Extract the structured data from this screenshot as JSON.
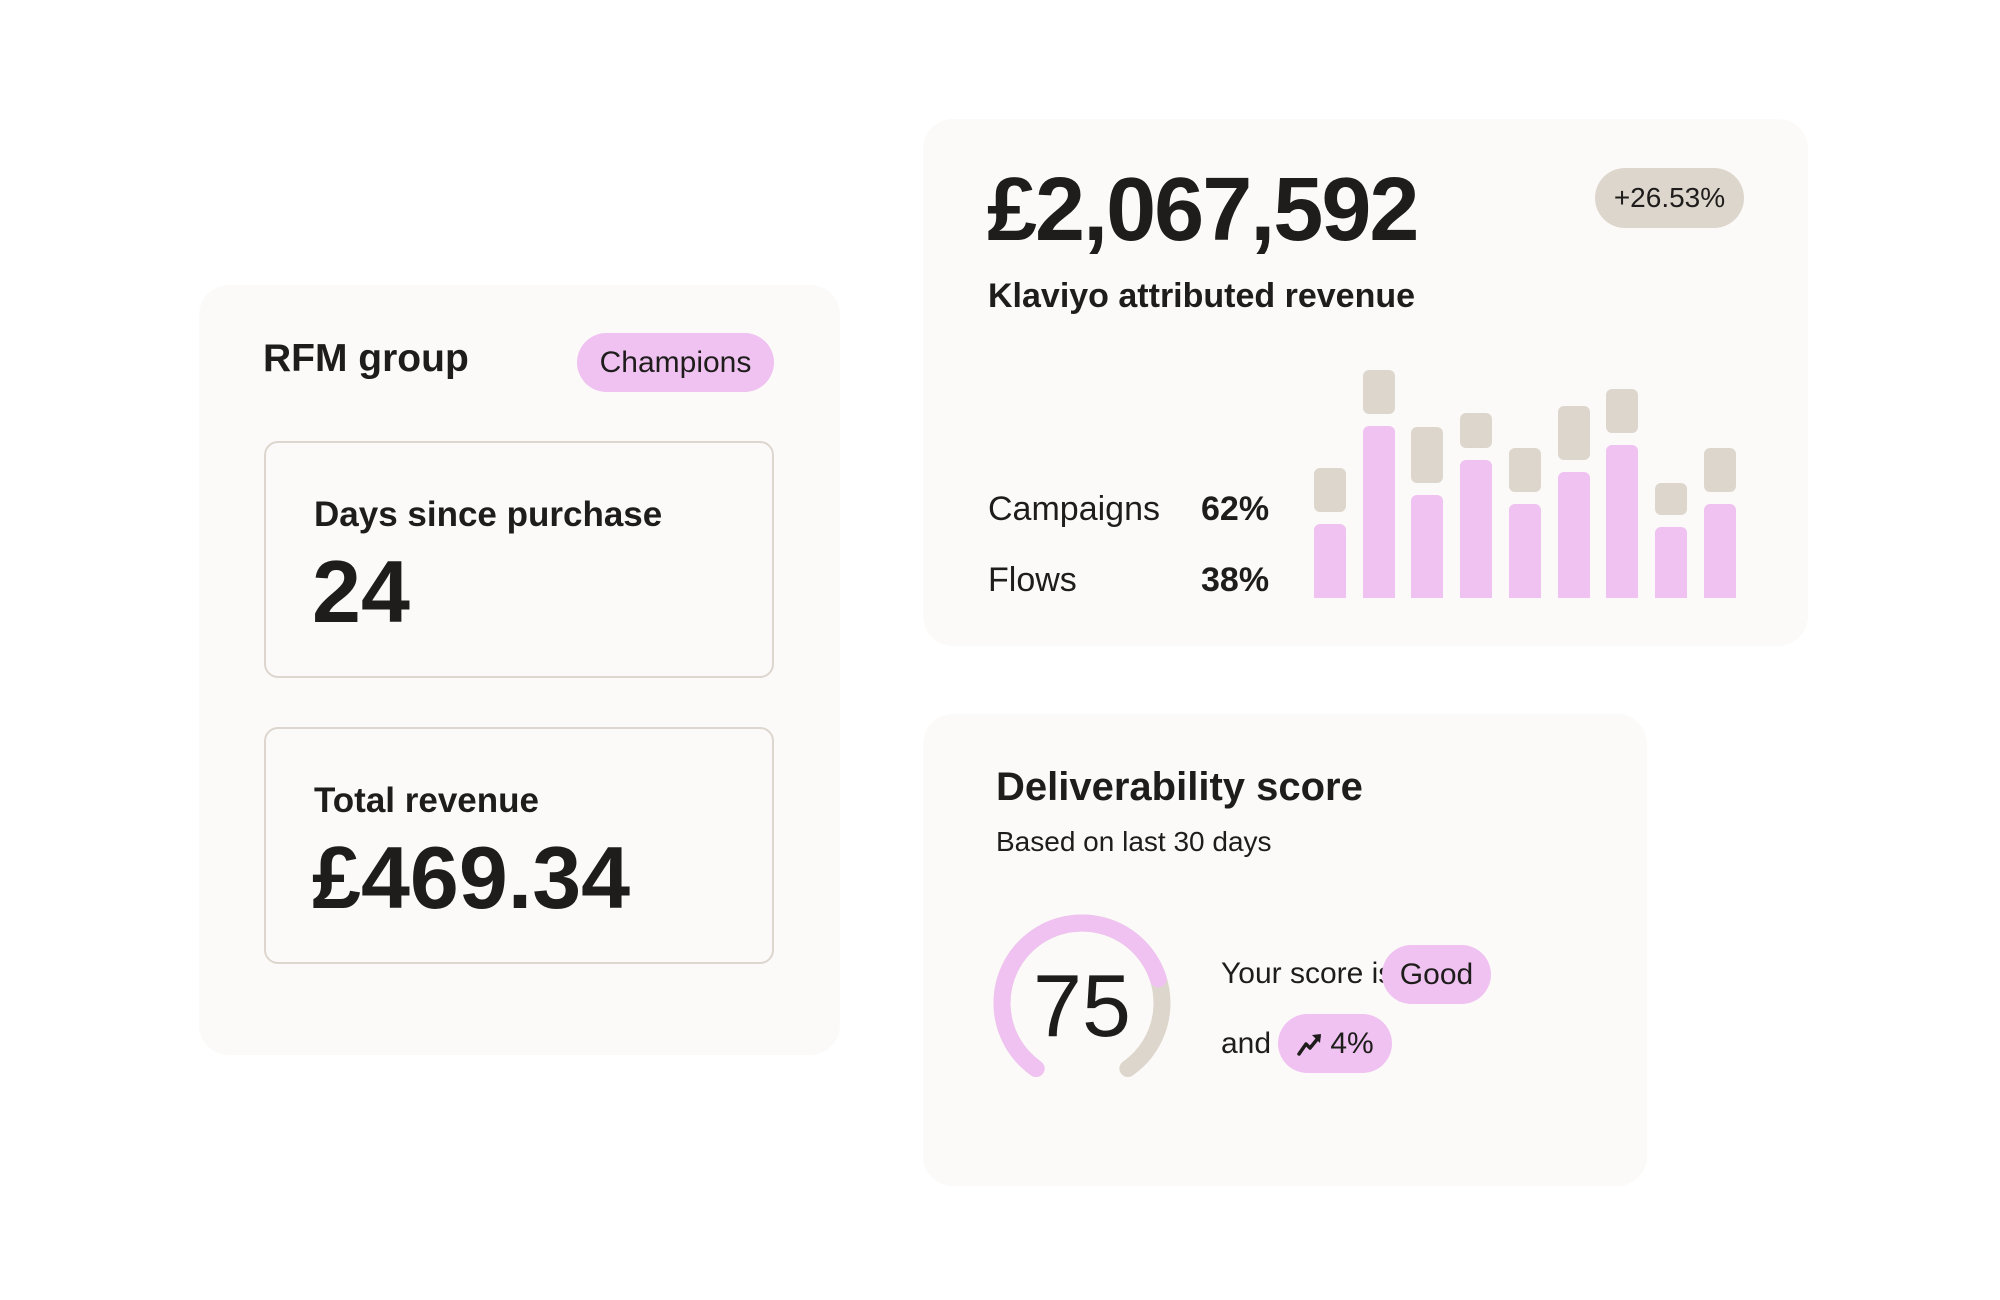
{
  "rfm_card": {
    "title": "RFM group",
    "badge": "Champions",
    "days_since_purchase": {
      "label": "Days since purchase",
      "value": "24"
    },
    "total_revenue": {
      "label": "Total revenue",
      "value": "£469.34"
    }
  },
  "revenue_card": {
    "amount": "£2,067,592",
    "change_badge": "+26.53%",
    "label": "Klaviyo attributed revenue",
    "breakdown": [
      {
        "label": "Campaigns",
        "value": "62%"
      },
      {
        "label": "Flows",
        "value": "38%"
      }
    ]
  },
  "chart_data": {
    "type": "bar",
    "categories": [
      "1",
      "2",
      "3",
      "4",
      "5",
      "6",
      "7",
      "8",
      "9"
    ],
    "series": [
      {
        "values": [
          7.4,
          17.2,
          10.3,
          13.8,
          9.4,
          12.6,
          15.3,
          7.1,
          9.4
        ],
        "color": "#efc2f1"
      },
      {
        "values": [
          4.4,
          4.4,
          5.6,
          3.5,
          4.4,
          5.4,
          4.4,
          3.2,
          4.4
        ],
        "color": "#ddd6cd"
      }
    ],
    "stacked": true,
    "axes_visible": false,
    "grid": false
  },
  "deliverability_card": {
    "title": "Deliverability score",
    "subtitle": "Based on last 30 days",
    "score": "75",
    "score_fraction": 0.75,
    "score_text": "Your score is",
    "rating": "Good",
    "and_text": "and",
    "trend_icon": "trend-up-arrow",
    "trend_value": "4%"
  },
  "colors": {
    "accent_pink": "#efc2f1",
    "neutral_gray": "#ddd6cd",
    "card_bg": "#fcfaf8"
  }
}
